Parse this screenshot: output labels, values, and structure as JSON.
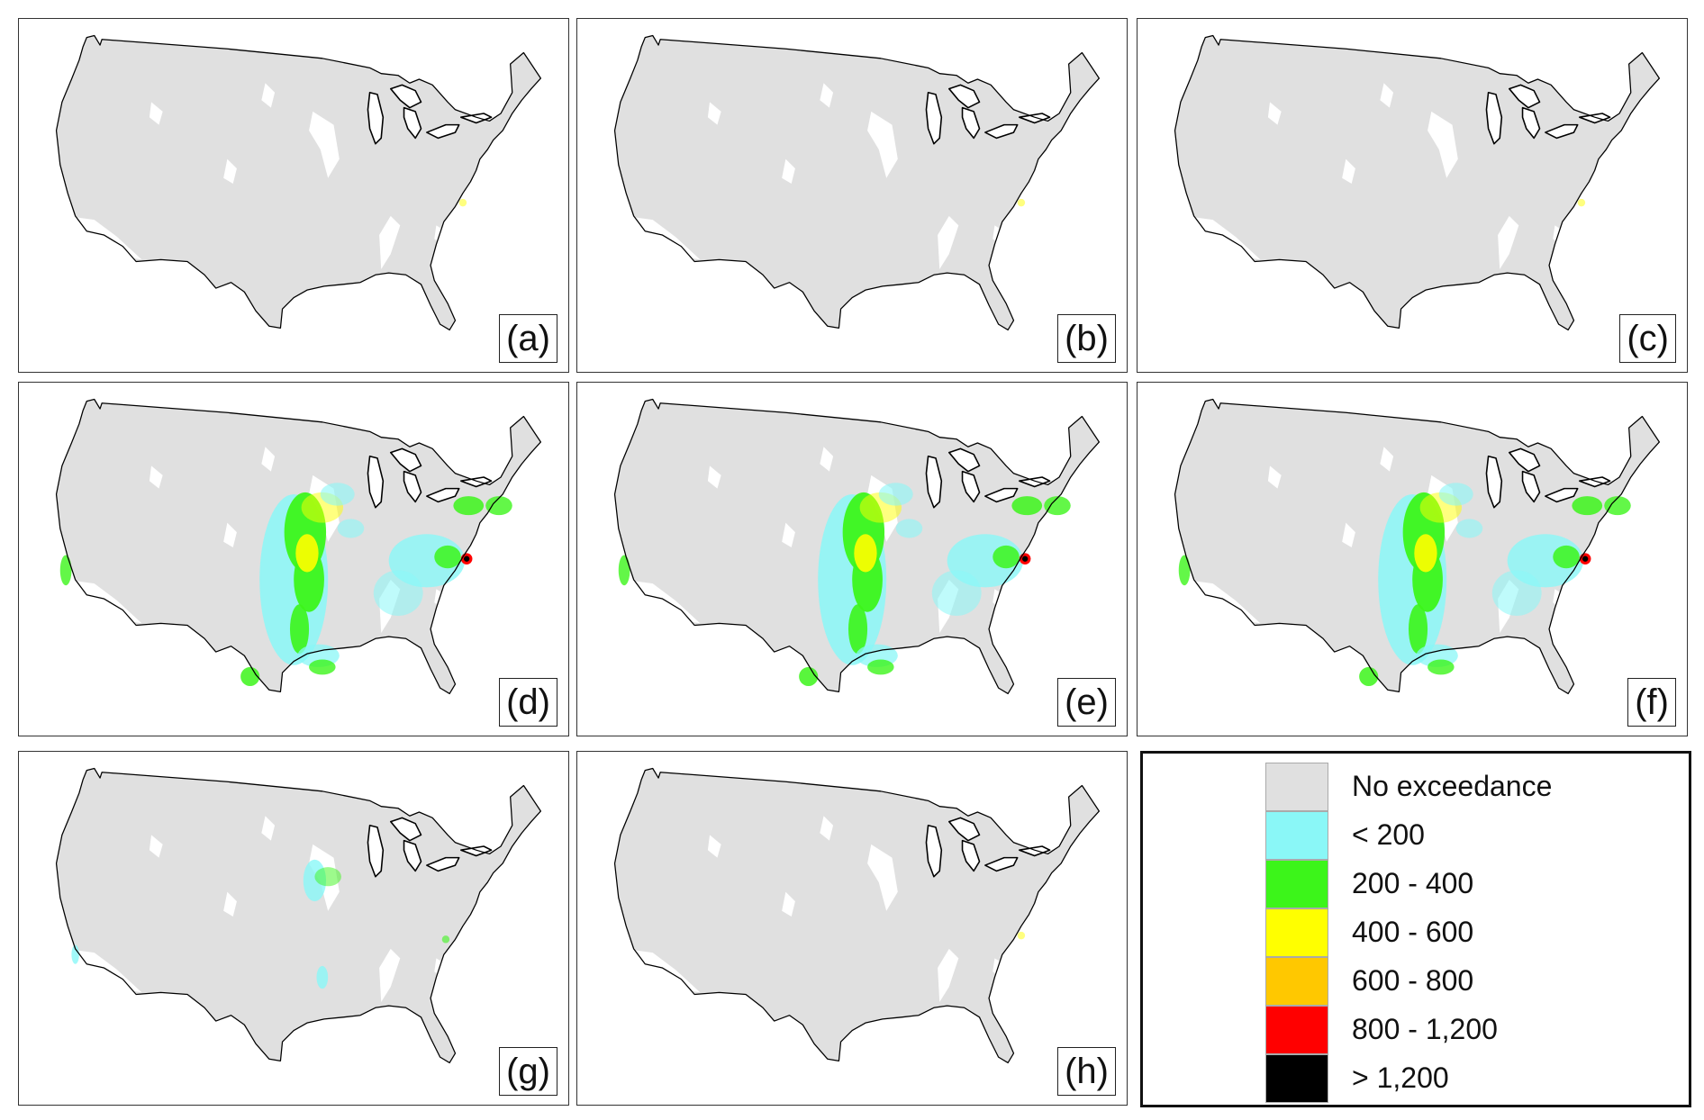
{
  "panels": [
    {
      "label": "(a)",
      "intensity": 0
    },
    {
      "label": "(b)",
      "intensity": 0
    },
    {
      "label": "(c)",
      "intensity": 0
    },
    {
      "label": "(d)",
      "intensity": 3
    },
    {
      "label": "(e)",
      "intensity": 3
    },
    {
      "label": "(f)",
      "intensity": 3
    },
    {
      "label": "(g)",
      "intensity": 1
    },
    {
      "label": "(h)",
      "intensity": 0
    }
  ],
  "legend": {
    "items": [
      {
        "label": "No exceedance",
        "color": "#e0e0e0"
      },
      {
        "label": "< 200",
        "color": "#8af7f7"
      },
      {
        "label": "200 - 400",
        "color": "#3cf51a"
      },
      {
        "label": "400 - 600",
        "color": "#ffff00"
      },
      {
        "label": "600 - 800",
        "color": "#ffc800"
      },
      {
        "label": "800 - 1,200",
        "color": "#ff0000"
      },
      {
        "label": "> 1,200",
        "color": "#000000"
      }
    ]
  },
  "colors": {
    "land": "#e0e0e0",
    "lakes": "#ffffff",
    "coast": "#000000"
  }
}
